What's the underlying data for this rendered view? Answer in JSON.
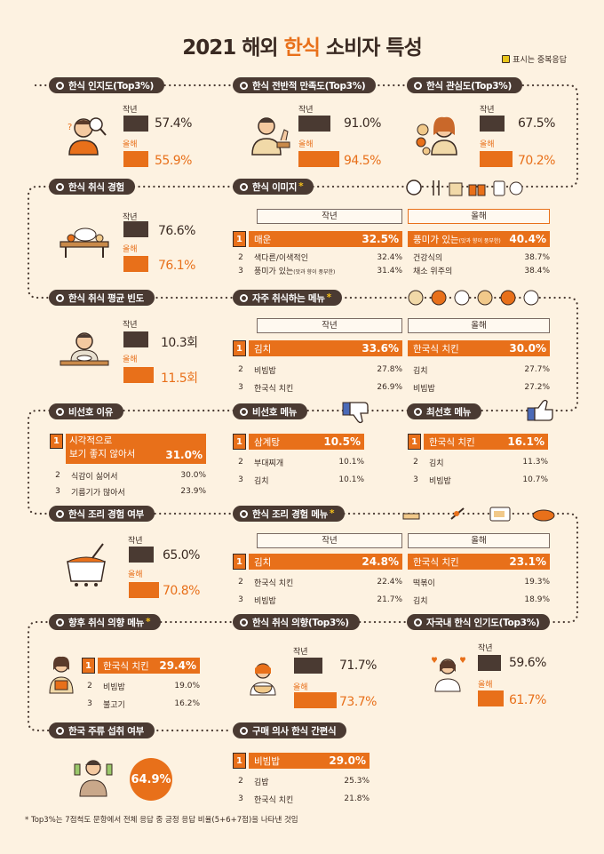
{
  "title_pre": "2021 해외 ",
  "title_hl": "한식",
  "title_post": " 소비자 특성",
  "legend": "표시는 중복응답",
  "footnote": "* Top3%는 7점척도 문항에서 전체 응답 중 긍정 응답 비율(5+6+7점)을 나타낸 것임",
  "labels": {
    "last": "작년",
    "this": "올해"
  },
  "colors": {
    "accent": "#e8701a",
    "dark": "#4a3a32",
    "bg": "#fdf2e1",
    "star": "#e8c51a"
  },
  "sections": {
    "awareness": {
      "title": "한식 인지도(Top3%)",
      "last": "57.4%",
      "this": "55.9%",
      "last_v": 57.4,
      "this_v": 55.9
    },
    "satisfaction": {
      "title": "한식 전반적 만족도(Top3%)",
      "last": "91.0%",
      "this": "94.5%",
      "last_v": 91.0,
      "this_v": 94.5
    },
    "interest": {
      "title": "한식 관심도(Top3%)",
      "last": "67.5%",
      "this": "70.2%",
      "last_v": 67.5,
      "this_v": 70.2
    },
    "experience": {
      "title": "한식 취식 경험",
      "last": "76.6%",
      "this": "76.1%",
      "last_v": 76.6,
      "this_v": 76.1
    },
    "image": {
      "title": "한식 이미지",
      "last": [
        {
          "rank": "1",
          "label": "매운",
          "value": "32.5%"
        },
        {
          "rank": "2",
          "label": "색다른/이색적인",
          "value": "32.4%"
        },
        {
          "rank": "3",
          "label": "풍미가 있는",
          "sub": "(맛과 향이 풍부한)",
          "value": "31.4%"
        }
      ],
      "this": [
        {
          "rank": "1",
          "label": "풍미가 있는",
          "sub": "(맛과 향이 풍부한)",
          "value": "40.4%"
        },
        {
          "rank": "2",
          "label": "건강식의",
          "value": "38.7%"
        },
        {
          "rank": "3",
          "label": "채소 위주의",
          "value": "38.4%"
        }
      ]
    },
    "frequency": {
      "title": "한식 취식 평균 빈도",
      "last": "10.3회",
      "this": "11.5회",
      "last_v": 10.3,
      "this_v": 11.5
    },
    "menu": {
      "title": "자주 취식하는 메뉴",
      "last": [
        {
          "rank": "1",
          "label": "김치",
          "value": "33.6%"
        },
        {
          "rank": "2",
          "label": "비빔밥",
          "value": "27.8%"
        },
        {
          "rank": "3",
          "label": "한국식 치킨",
          "value": "26.9%"
        }
      ],
      "this": [
        {
          "rank": "1",
          "label": "한국식 치킨",
          "value": "30.0%"
        },
        {
          "rank": "2",
          "label": "김치",
          "value": "27.7%"
        },
        {
          "rank": "3",
          "label": "비빔밥",
          "value": "27.2%"
        }
      ]
    },
    "dislike_reason": {
      "title": "비선호 이유",
      "items": [
        {
          "rank": "1",
          "label": "시각적으로\n보기 좋지 않아서",
          "value": "31.0%"
        },
        {
          "rank": "2",
          "label": "식감이 싫어서",
          "value": "30.0%"
        },
        {
          "rank": "3",
          "label": "기름기가 많아서",
          "value": "23.9%"
        }
      ]
    },
    "dislike_menu": {
      "title": "비선호 메뉴",
      "items": [
        {
          "rank": "1",
          "label": "삼계탕",
          "value": "10.5%"
        },
        {
          "rank": "2",
          "label": "부대찌개",
          "value": "10.1%"
        },
        {
          "rank": "3",
          "label": "김치",
          "value": "10.1%"
        }
      ]
    },
    "like_menu": {
      "title": "최선호 메뉴",
      "items": [
        {
          "rank": "1",
          "label": "한국식 치킨",
          "value": "16.1%"
        },
        {
          "rank": "2",
          "label": "김치",
          "value": "11.3%"
        },
        {
          "rank": "3",
          "label": "비빔밥",
          "value": "10.7%"
        }
      ]
    },
    "cooking": {
      "title": "한식 조리 경험 여부",
      "last": "65.0%",
      "this": "70.8%",
      "last_v": 65.0,
      "this_v": 70.8
    },
    "cooking_menu": {
      "title": "한식 조리 경험 메뉴",
      "last": [
        {
          "rank": "1",
          "label": "김치",
          "value": "24.8%"
        },
        {
          "rank": "2",
          "label": "한국식 치킨",
          "value": "22.4%"
        },
        {
          "rank": "3",
          "label": "비빔밥",
          "value": "21.7%"
        }
      ],
      "this": [
        {
          "rank": "1",
          "label": "한국식 치킨",
          "value": "23.1%"
        },
        {
          "rank": "2",
          "label": "떡볶이",
          "value": "19.3%"
        },
        {
          "rank": "3",
          "label": "김치",
          "value": "18.9%"
        }
      ]
    },
    "future_menu": {
      "title": "향후 취식 의향 메뉴",
      "items": [
        {
          "rank": "1",
          "label": "한국식 치킨",
          "value": "29.4%"
        },
        {
          "rank": "2",
          "label": "비빔밥",
          "value": "19.0%"
        },
        {
          "rank": "3",
          "label": "불고기",
          "value": "16.2%"
        }
      ]
    },
    "intent": {
      "title": "한식 취식 의향(Top3%)",
      "last": "71.7%",
      "this": "73.7%",
      "last_v": 71.7,
      "this_v": 73.7
    },
    "popularity": {
      "title": "자국내 한식 인기도(Top3%)",
      "last": "59.6%",
      "this": "61.7%",
      "last_v": 59.6,
      "this_v": 61.7
    },
    "liquor": {
      "title": "한국 주류 섭취 여부",
      "value": "64.9%"
    },
    "convenience": {
      "title": "구매 의사 한식 간편식",
      "items": [
        {
          "rank": "1",
          "label": "비빔밥",
          "value": "29.0%"
        },
        {
          "rank": "2",
          "label": "김밥",
          "value": "25.3%"
        },
        {
          "rank": "3",
          "label": "한국식 치킨",
          "value": "21.8%"
        }
      ]
    }
  }
}
